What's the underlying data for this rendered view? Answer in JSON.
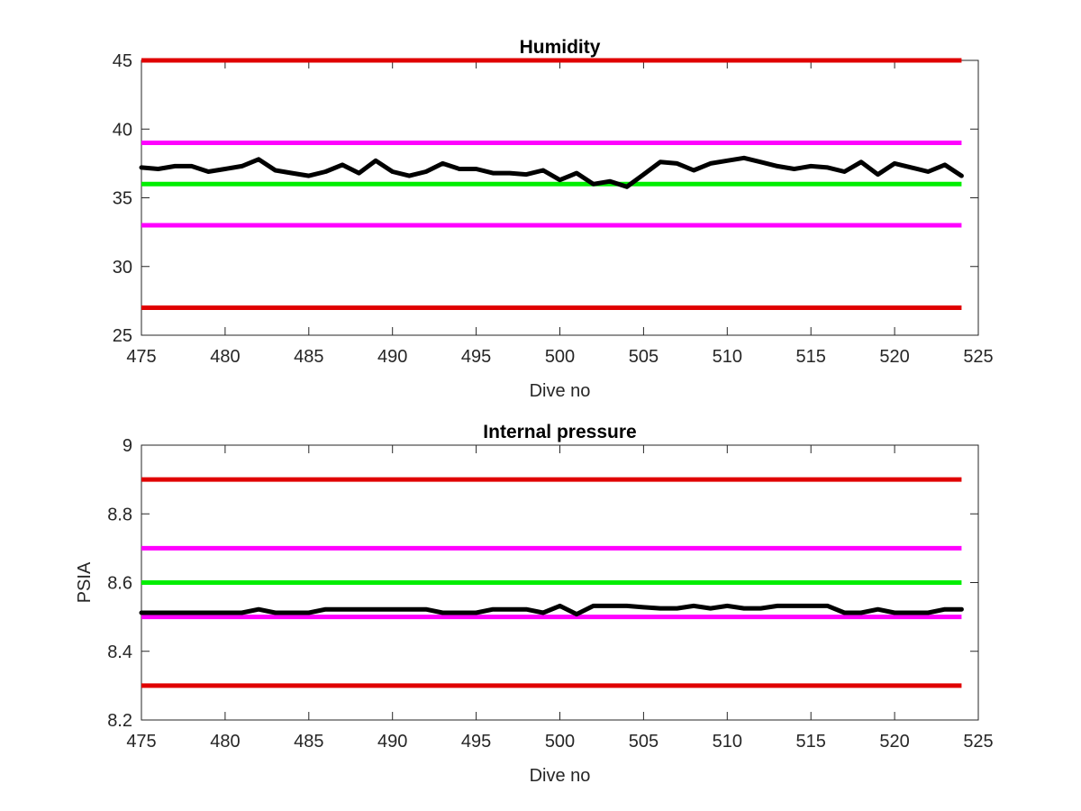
{
  "chart_data": [
    {
      "type": "line",
      "title": "Humidity",
      "xlabel": "Dive no",
      "ylabel": "",
      "xlim": [
        475,
        525
      ],
      "ylim": [
        25,
        45
      ],
      "xticks": [
        "475",
        "480",
        "485",
        "490",
        "495",
        "500",
        "505",
        "510",
        "515",
        "520",
        "525"
      ],
      "yticks": [
        "25",
        "30",
        "35",
        "40",
        "45"
      ],
      "grid": false,
      "limit_lines": [
        {
          "y": 45,
          "color": "#e00000"
        },
        {
          "y": 39,
          "color": "#ff00ff"
        },
        {
          "y": 36,
          "color": "#00ee00"
        },
        {
          "y": 33,
          "color": "#ff00ff"
        },
        {
          "y": 27,
          "color": "#e00000"
        }
      ],
      "series": [
        {
          "color": "#000000",
          "x": [
            475,
            476,
            477,
            478,
            479,
            480,
            481,
            482,
            483,
            484,
            485,
            486,
            487,
            488,
            489,
            490,
            491,
            492,
            493,
            494,
            495,
            496,
            497,
            498,
            499,
            500,
            501,
            502,
            503,
            504,
            505,
            506,
            507,
            508,
            509,
            510,
            511,
            512,
            513,
            514,
            515,
            516,
            517,
            518,
            519,
            520,
            521,
            522,
            523,
            524
          ],
          "values": [
            37.2,
            37.1,
            37.3,
            37.3,
            36.9,
            37.1,
            37.3,
            37.8,
            37.0,
            36.8,
            36.6,
            36.9,
            37.4,
            36.8,
            37.7,
            36.9,
            36.6,
            36.9,
            37.5,
            37.1,
            37.1,
            36.8,
            36.8,
            36.7,
            37.0,
            36.3,
            36.8,
            36.0,
            36.2,
            35.8,
            36.7,
            37.6,
            37.5,
            37.0,
            37.5,
            37.7,
            37.9,
            37.6,
            37.3,
            37.1,
            37.3,
            37.2,
            36.9,
            37.6,
            36.7,
            37.5,
            37.2,
            36.9,
            37.4,
            36.6
          ]
        }
      ]
    },
    {
      "type": "line",
      "title": "Internal pressure",
      "xlabel": "Dive no",
      "ylabel": "PSIA",
      "xlim": [
        475,
        525
      ],
      "ylim": [
        8.2,
        9
      ],
      "xticks": [
        "475",
        "480",
        "485",
        "490",
        "495",
        "500",
        "505",
        "510",
        "515",
        "520",
        "525"
      ],
      "yticks": [
        "8.2",
        "8.4",
        "8.6",
        "8.8",
        "9"
      ],
      "grid": false,
      "limit_lines": [
        {
          "y": 8.9,
          "color": "#e00000"
        },
        {
          "y": 8.7,
          "color": "#ff00ff"
        },
        {
          "y": 8.6,
          "color": "#00ee00"
        },
        {
          "y": 8.5,
          "color": "#ff00ff"
        },
        {
          "y": 8.3,
          "color": "#e00000"
        }
      ],
      "series": [
        {
          "color": "#000000",
          "x": [
            475,
            476,
            477,
            478,
            479,
            480,
            481,
            482,
            483,
            484,
            485,
            486,
            487,
            488,
            489,
            490,
            491,
            492,
            493,
            494,
            495,
            496,
            497,
            498,
            499,
            500,
            501,
            502,
            503,
            504,
            505,
            506,
            507,
            508,
            509,
            510,
            511,
            512,
            513,
            514,
            515,
            516,
            517,
            518,
            519,
            520,
            521,
            522,
            523,
            524
          ],
          "values": [
            8.512,
            8.512,
            8.512,
            8.512,
            8.512,
            8.512,
            8.512,
            8.522,
            8.512,
            8.512,
            8.512,
            8.522,
            8.522,
            8.522,
            8.522,
            8.522,
            8.522,
            8.522,
            8.512,
            8.512,
            8.512,
            8.522,
            8.522,
            8.522,
            8.512,
            8.532,
            8.508,
            8.532,
            8.532,
            8.532,
            8.528,
            8.525,
            8.525,
            8.532,
            8.525,
            8.532,
            8.525,
            8.525,
            8.532,
            8.532,
            8.532,
            8.532,
            8.512,
            8.512,
            8.522,
            8.512,
            8.512,
            8.512,
            8.522,
            8.522
          ]
        }
      ]
    }
  ]
}
